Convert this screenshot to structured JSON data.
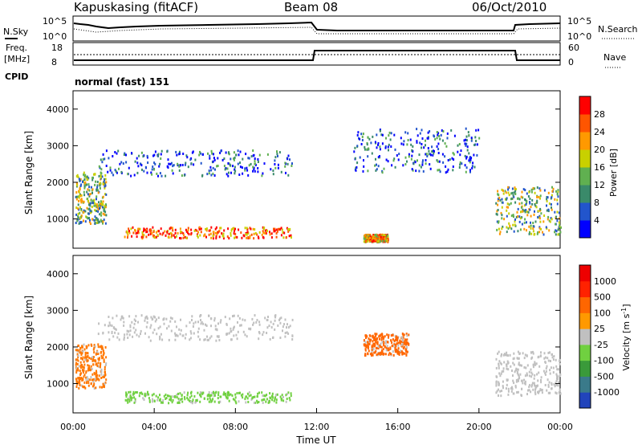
{
  "header": {
    "station": "Kapuskasing (fitACF)",
    "beam": "Beam 08",
    "date": "06/Oct/2010"
  },
  "top_panels": {
    "nsky_label": "N.Sky",
    "nsearch_label": "N.Search",
    "noise_ticks": [
      "10^5",
      "10^0"
    ],
    "freq_label_1": "Freq.",
    "freq_label_2": "[MHz]",
    "freq_ticks": [
      "18",
      "8"
    ],
    "nave_label": "Nave",
    "nave_ticks": [
      "60",
      "0"
    ],
    "cpid_label": "CPID",
    "cpid_value": "normal (fast) 151"
  },
  "chart_data": [
    {
      "type": "heatmap",
      "panel": "power",
      "title": "",
      "ylabel": "Slant Range [km]",
      "xlabel": "",
      "ylim": [
        200,
        4500
      ],
      "yticks": [
        "4000",
        "3000",
        "2000",
        "1000"
      ],
      "colorbar_label": "Power [dB]",
      "colorbar_ticks": [
        "28",
        "24",
        "20",
        "16",
        "12",
        "8",
        "4"
      ],
      "colorbar_colors": [
        "#0000ff",
        "#2255cc",
        "#3a8a6a",
        "#60b050",
        "#c8d000",
        "#ff9900",
        "#ff5500",
        "#ff0000"
      ],
      "echo_regions": [
        {
          "t0": 1.2,
          "t1": 10.8,
          "r0": 2200,
          "r1": 2900,
          "level": 1
        },
        {
          "t0": 13.8,
          "t1": 20.0,
          "r0": 2300,
          "r1": 3500,
          "level": 1
        },
        {
          "t0": 0.1,
          "t1": 1.6,
          "r0": 900,
          "r1": 2300,
          "level": 3
        },
        {
          "t0": 2.5,
          "t1": 10.8,
          "r0": 500,
          "r1": 800,
          "level": 6
        },
        {
          "t0": 14.3,
          "t1": 15.5,
          "r0": 400,
          "r1": 600,
          "level": 5
        },
        {
          "t0": 20.8,
          "t1": 24.0,
          "r0": 600,
          "r1": 1900,
          "level": 3
        }
      ]
    },
    {
      "type": "heatmap",
      "panel": "velocity",
      "title": "",
      "ylabel": "Slant Range [km]",
      "xlabel": "Time UT",
      "ylim": [
        200,
        4500
      ],
      "yticks": [
        "4000",
        "3000",
        "2000",
        "1000"
      ],
      "xticks": [
        "00:00",
        "04:00",
        "08:00",
        "12:00",
        "16:00",
        "20:00",
        "00:00"
      ],
      "xlim_hours": [
        0,
        24
      ],
      "colorbar_label": "Velocity [m s",
      "colorbar_label_sup": "-1",
      "colorbar_label_end": "]",
      "colorbar_ticks": [
        "1000",
        "500",
        "100",
        "25",
        "-25",
        "-100",
        "-500",
        "-1000"
      ],
      "colorbar_colors": [
        "#2244bb",
        "#3a7a8a",
        "#3a9a3a",
        "#70d040",
        "#c0c0c0",
        "#ff9900",
        "#ff6600",
        "#ff2200",
        "#ee0000"
      ],
      "echo_regions": [
        {
          "t0": 1.2,
          "t1": 10.8,
          "r0": 2200,
          "r1": 2900,
          "color": "#c0c0c0"
        },
        {
          "t0": 0.1,
          "t1": 1.6,
          "r0": 900,
          "r1": 2100,
          "color": "#ff7700"
        },
        {
          "t0": 14.3,
          "t1": 16.5,
          "r0": 1800,
          "r1": 2400,
          "color": "#ff6600"
        },
        {
          "t0": 2.5,
          "t1": 10.8,
          "r0": 500,
          "r1": 800,
          "color": "#70d040"
        },
        {
          "t0": 20.8,
          "t1": 24.0,
          "r0": 700,
          "r1": 1900,
          "color": "#c0c0c0"
        }
      ]
    }
  ]
}
